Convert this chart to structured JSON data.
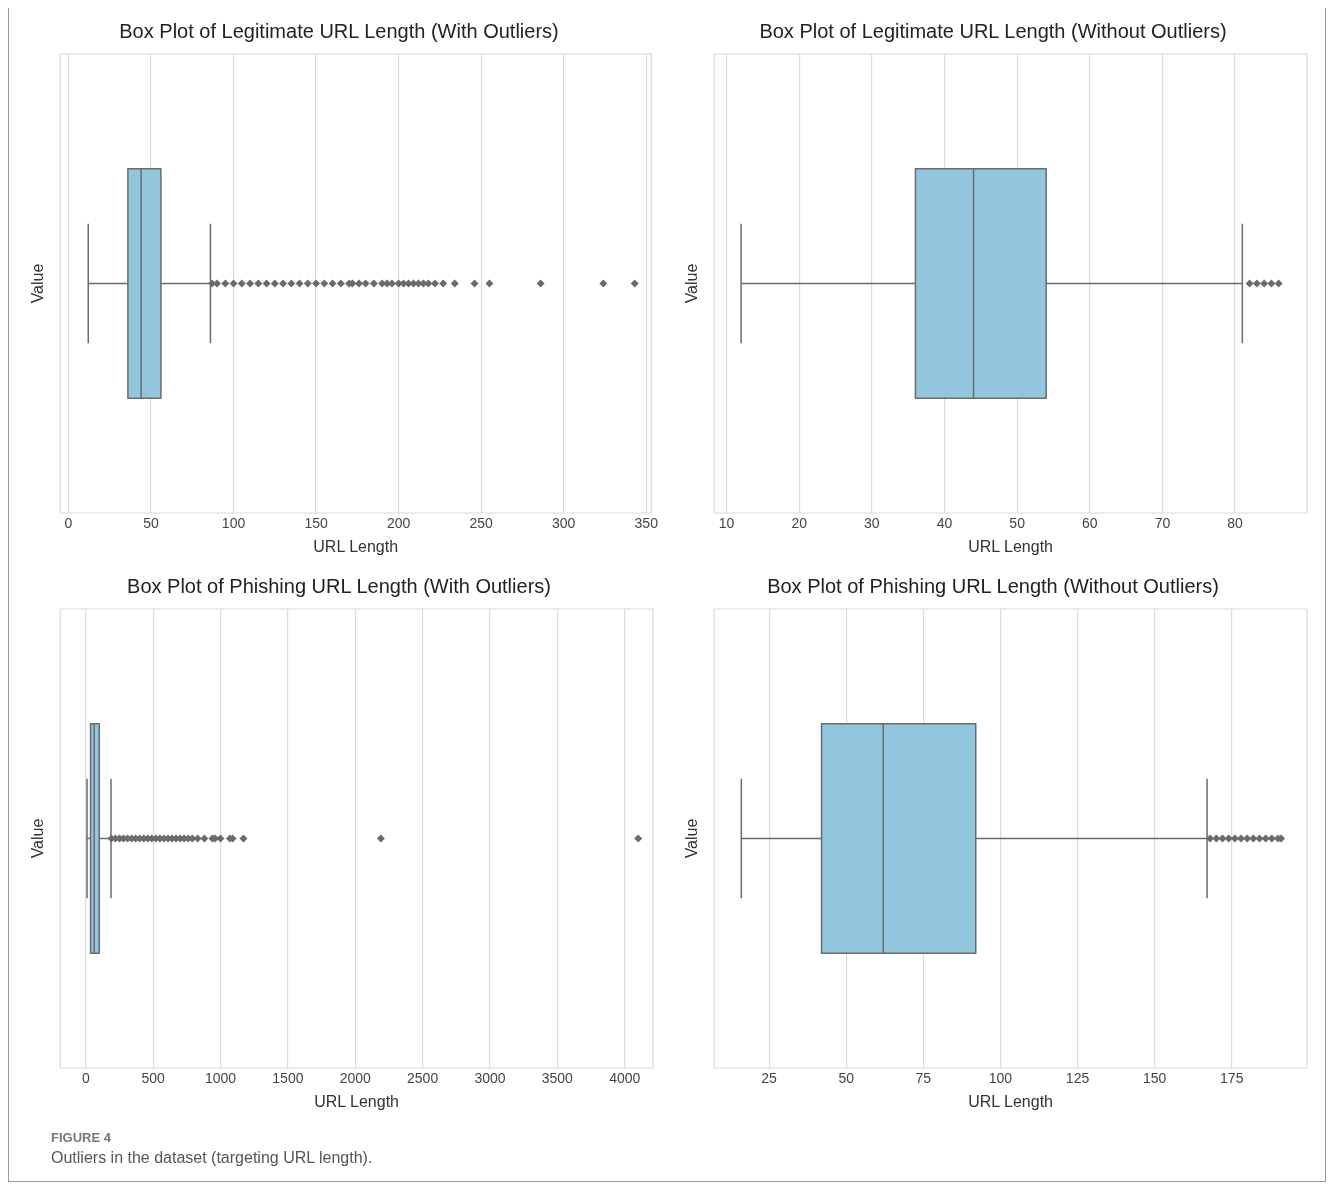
{
  "chart_data": [
    {
      "type": "box",
      "title": "Box Plot of Legitimate URL Length (With Outliers)",
      "xlabel": "URL Length",
      "ylabel": "Value",
      "orientation": "horizontal",
      "categories": [
        null
      ],
      "grid": "x",
      "tick_labels": "x",
      "xlim": [
        -5,
        353
      ],
      "xticks": [
        0,
        50,
        100,
        150,
        200,
        250,
        300,
        350
      ],
      "series": [
        {
          "color": "#92c6de",
          "boxes": [
            {
              "low": 12,
              "q1": 36,
              "median": 44,
              "q3": 56,
              "high": 86,
              "outliers": [
                87,
                90,
                95,
                100,
                105,
                110,
                115,
                120,
                125,
                130,
                135,
                140,
                145,
                150,
                155,
                160,
                165,
                170,
                172,
                176,
                180,
                185,
                190,
                193,
                196,
                200,
                203,
                206,
                209,
                212,
                215,
                218,
                222,
                227,
                234,
                246,
                255,
                286,
                324,
                343
              ]
            }
          ]
        }
      ]
    },
    {
      "type": "box",
      "title": "Box Plot of Legitimate URL Length (Without Outliers)",
      "xlabel": "URL Length",
      "ylabel": "Value",
      "orientation": "horizontal",
      "categories": [
        null
      ],
      "grid": "x",
      "tick_labels": "x",
      "xlim": [
        8.3,
        89.9
      ],
      "xticks": [
        10,
        20,
        30,
        40,
        50,
        60,
        70,
        80
      ],
      "series": [
        {
          "color": "#92c6de",
          "boxes": [
            {
              "low": 12,
              "q1": 36,
              "median": 44,
              "q3": 54,
              "high": 81,
              "outliers": [
                82,
                83,
                84,
                85,
                86
              ]
            }
          ]
        }
      ]
    },
    {
      "type": "box",
      "title": "Box Plot of Phishing URL Length (With Outliers)",
      "xlabel": "URL Length",
      "ylabel": "Value",
      "orientation": "horizontal",
      "categories": [
        null
      ],
      "grid": "x",
      "tick_labels": "x",
      "xlim": [
        -190,
        4210
      ],
      "xticks": [
        0,
        500,
        1000,
        1500,
        2000,
        2500,
        3000,
        3500,
        4000
      ],
      "series": [
        {
          "color": "#92c6de",
          "boxes": [
            {
              "low": 9,
              "q1": 35,
              "median": 62,
              "q3": 100,
              "high": 187,
              "outliers": [
                190,
                220,
                250,
                280,
                310,
                340,
                370,
                400,
                430,
                460,
                490,
                520,
                550,
                580,
                610,
                640,
                670,
                700,
                730,
                760,
                790,
                830,
                880,
                940,
                960,
                1000,
                1070,
                1090,
                1170,
                2190,
                4100
              ]
            }
          ]
        }
      ]
    },
    {
      "type": "box",
      "title": "Box Plot of Phishing URL Length (Without Outliers)",
      "xlabel": "URL Length",
      "ylabel": "Value",
      "orientation": "horizontal",
      "categories": [
        null
      ],
      "grid": "x",
      "tick_labels": "x",
      "xlim": [
        7.2,
        199.4
      ],
      "xticks": [
        25,
        50,
        75,
        100,
        125,
        150,
        175
      ],
      "series": [
        {
          "color": "#92c6de",
          "boxes": [
            {
              "low": 16,
              "q1": 42,
              "median": 62,
              "q3": 92,
              "high": 167,
              "outliers": [
                168,
                170,
                172,
                174,
                176,
                178,
                180,
                182,
                184,
                186,
                188,
                190,
                191
              ]
            }
          ]
        }
      ],
      "annotations": [
        "FIGURE 4",
        "Outliers in the dataset (targeting URL length)."
      ]
    }
  ]
}
